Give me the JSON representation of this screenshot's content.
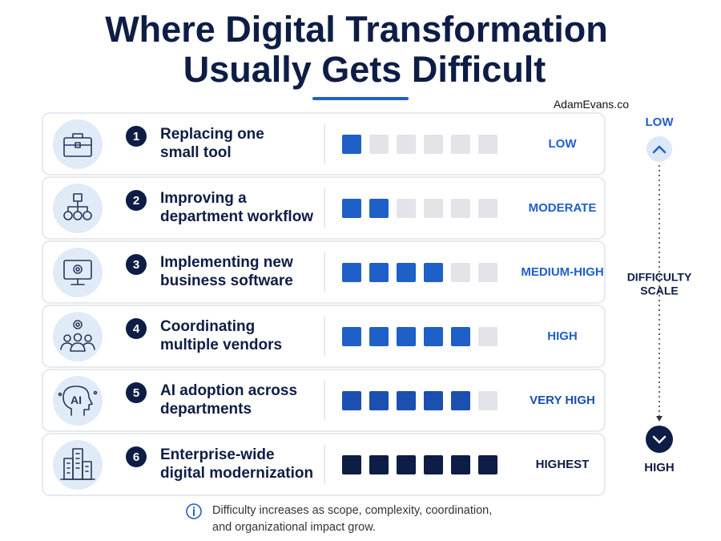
{
  "header": {
    "title": [
      "Where Digital Transformation",
      "Usually Gets Difficult"
    ],
    "credit": "AdamEvans.co"
  },
  "rows": [
    {
      "number": "1",
      "label": [
        "Replacing one",
        "small tool"
      ],
      "level": "LOW",
      "filled": 1,
      "color": "#1f5fc8"
    },
    {
      "number": "2",
      "label": [
        "Improving a",
        "department workflow"
      ],
      "level": "MODERATE",
      "filled": 2,
      "color": "#1f5fc8"
    },
    {
      "number": "3",
      "label": [
        "Implementing new",
        "business software"
      ],
      "level": "MEDIUM-HIGH",
      "filled": 4,
      "color": "#1f5fc8"
    },
    {
      "number": "4",
      "label": [
        "Coordinating",
        "multiple vendors"
      ],
      "level": "HIGH",
      "filled": 5,
      "color": "#1f5fc8"
    },
    {
      "number": "5",
      "label": [
        "AI adoption across",
        "departments"
      ],
      "level": "VERY HIGH",
      "filled": 5,
      "color": "#1b4fb0",
      "icon_text": "AI"
    },
    {
      "number": "6",
      "label": [
        "Enterprise-wide",
        "digital modernization"
      ],
      "level": "HIGHEST",
      "filled": 6,
      "color": "#0e1d45"
    }
  ],
  "scale": {
    "max": 6,
    "empty_color": "#e2e4e8",
    "top": "LOW",
    "bottom": "HIGH",
    "label": [
      "DIFFICULTY",
      "SCALE"
    ]
  },
  "footnote": [
    "Difficulty increases as scope, complexity, coordination,",
    "and organizational impact grow."
  ]
}
